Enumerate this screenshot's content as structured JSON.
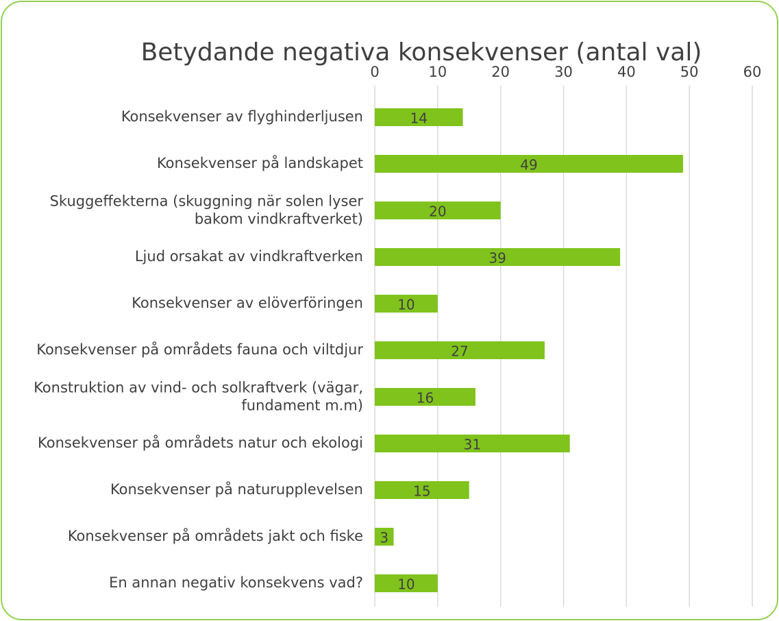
{
  "chart_data": {
    "type": "bar",
    "orientation": "horizontal",
    "title": "Betydande negativa konsekvenser (antal val)",
    "categories": [
      "Konsekvenser av flyghinderljusen",
      "Konsekvenser på landskapet",
      "Skuggeffekterna (skuggning när solen lyser bakom vindkraftverket)",
      "Ljud orsakat av vindkraftverken",
      "Konsekvenser av elöverföringen",
      "Konsekvenser på områdets fauna och viltdjur",
      "Konstruktion av vind- och solkraftverk (vägar, fundament m.m)",
      "Konsekvenser på områdets natur och ekologi",
      "Konsekvenser på naturupplevelsen",
      "Konsekvenser på områdets jakt och fiske",
      "En annan negativ konsekvens vad?"
    ],
    "values": [
      14,
      49,
      20,
      39,
      10,
      27,
      16,
      31,
      15,
      3,
      10
    ],
    "color": "#80c31c",
    "xlim": [
      0,
      60
    ],
    "xticks": [
      0,
      10,
      20,
      30,
      40,
      50,
      60
    ],
    "grid": true
  }
}
